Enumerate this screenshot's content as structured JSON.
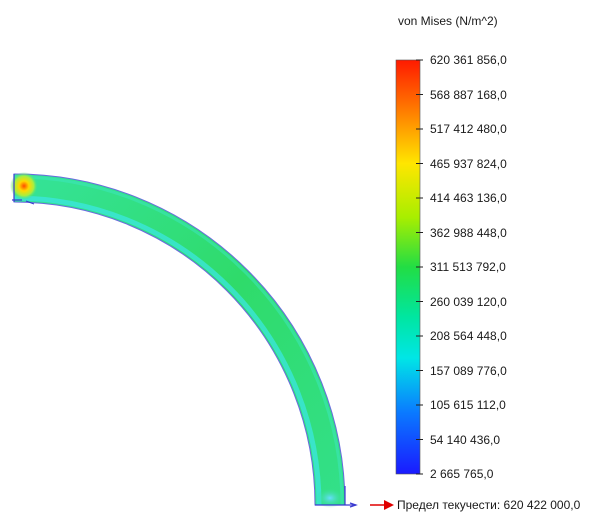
{
  "legend": {
    "title": "von Mises (N/m^2)",
    "ticks": [
      "620 361 856,0",
      "568 887 168,0",
      "517 412 480,0",
      "465 937 824,0",
      "414 463 136,0",
      "362 988 448,0",
      "311 513 792,0",
      "260 039 120,0",
      "208 564 448,0",
      "157 089 776,0",
      "105 615 112,0",
      "54 140 436,0",
      "2 665 765,0"
    ]
  },
  "yield": {
    "label": "Предел текучести: 620 422 000,0"
  },
  "colors": {
    "scale_top": "#ff1a00",
    "scale_mid": "#22dd44",
    "scale_bottom": "#1a1aff",
    "arc_body": "#33e08a",
    "arrow": "#e00000"
  }
}
